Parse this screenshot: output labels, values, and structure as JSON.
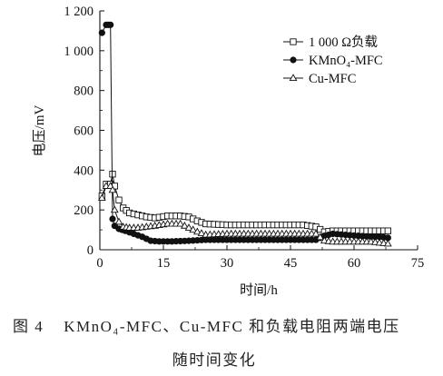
{
  "figure": {
    "caption_line1_prefix": "图 4",
    "caption_line1_text": "KMnO₄-MFC、Cu-MFC 和负载电阻两端电压",
    "caption_line2_text": "随时间变化"
  },
  "chart_data": {
    "type": "line",
    "xlabel": "时间/h",
    "ylabel": "电压/mV",
    "xlim": [
      0,
      75
    ],
    "ylim": [
      0,
      1200
    ],
    "xticks": [
      0,
      15,
      30,
      45,
      60,
      75
    ],
    "xtick_labels": [
      "0",
      "15",
      "30",
      "45",
      "60",
      "75"
    ],
    "yticks": [
      0,
      200,
      400,
      600,
      800,
      1000,
      1200
    ],
    "ytick_labels": [
      "0",
      "200",
      "400",
      "600",
      "800",
      "1 000",
      "1 200"
    ],
    "legend_position": "top-right",
    "grid": false,
    "series": [
      {
        "name": "1 000 Ω负载",
        "marker": "open-square",
        "color": "#111111",
        "x": [
          0.5,
          1.5,
          2.5,
          3.0,
          3.5,
          4.5,
          5.5,
          7,
          9,
          11,
          13,
          16,
          19,
          21,
          23,
          25,
          30,
          35,
          40,
          45,
          48,
          51,
          53,
          55,
          58,
          61,
          64,
          66,
          68
        ],
        "y": [
          270,
          330,
          330,
          380,
          320,
          250,
          210,
          185,
          175,
          165,
          160,
          170,
          170,
          165,
          145,
          130,
          125,
          125,
          125,
          125,
          125,
          115,
          90,
          95,
          95,
          95,
          95,
          95,
          95
        ]
      },
      {
        "name": "KMnO₄-MFC",
        "marker": "filled-circle",
        "color": "#111111",
        "x": [
          0.5,
          1.5,
          2.0,
          2.5,
          3.0,
          3.5,
          4.5,
          6,
          8,
          10,
          12,
          14,
          17,
          21,
          25,
          30,
          35,
          40,
          45,
          48,
          51,
          53,
          55,
          58,
          61,
          64,
          66,
          68
        ],
        "y": [
          1090,
          1130,
          1130,
          1130,
          155,
          120,
          105,
          95,
          80,
          65,
          45,
          42,
          42,
          45,
          50,
          50,
          50,
          50,
          50,
          50,
          50,
          70,
          80,
          75,
          70,
          65,
          65,
          60
        ]
      },
      {
        "name": "Cu-MFC",
        "marker": "open-triangle",
        "color": "#111111",
        "x": [
          0.5,
          1.5,
          2.5,
          3.0,
          3.5,
          4.5,
          5.5,
          7,
          9,
          11,
          13,
          16,
          19,
          21,
          23,
          25,
          30,
          35,
          40,
          45,
          48,
          51,
          53,
          55,
          58,
          61,
          64,
          66,
          68
        ],
        "y": [
          260,
          320,
          320,
          300,
          200,
          140,
          115,
          110,
          110,
          115,
          120,
          130,
          130,
          110,
          90,
          75,
          80,
          80,
          80,
          80,
          80,
          80,
          45,
          40,
          40,
          40,
          40,
          35,
          30
        ]
      }
    ]
  }
}
